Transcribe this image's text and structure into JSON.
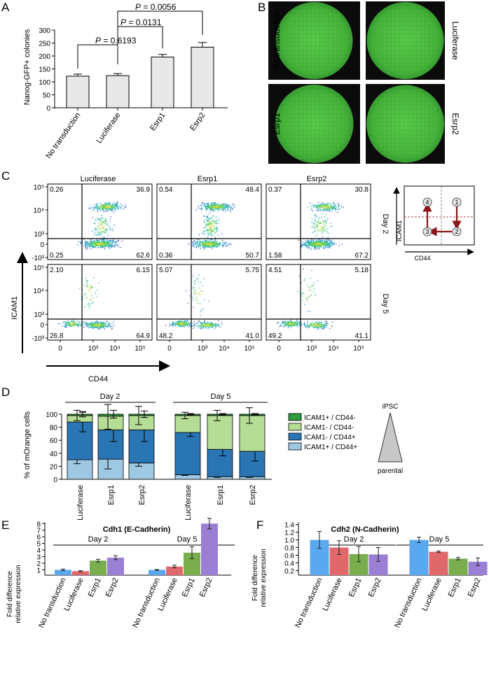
{
  "panel_letters": [
    "A",
    "B",
    "C",
    "D",
    "E",
    "F"
  ],
  "panelA": {
    "ylabel": "Nanog-GFP+ colonies",
    "ylim": [
      0,
      300
    ],
    "yticks": [
      "0",
      "50",
      "100",
      "150",
      "200",
      "250",
      "300"
    ],
    "p_labels": [
      {
        "italic": "P",
        "value": " = 0.6193"
      },
      {
        "italic": "P",
        "value": " = 0.0131"
      },
      {
        "italic": "P",
        "value": " = 0.0056"
      }
    ]
  },
  "panelB": {
    "wells": [
      {
        "label": "No transduction"
      },
      {
        "label": "Luciferase"
      },
      {
        "label": "Esrp1"
      },
      {
        "label": "Esrp2"
      }
    ]
  },
  "panelC": {
    "columns": [
      "Luciferase",
      "Esrp1",
      "Esrp2"
    ],
    "rows": [
      "Day 2",
      "Day 5"
    ],
    "yaxis_label": "ICAM1",
    "xaxis_label": "CD44",
    "yticks": [
      "10⁵",
      "10⁴",
      "10³",
      "0",
      "-10³"
    ],
    "xticks": [
      "0",
      "10³",
      "10⁴",
      "10⁵"
    ],
    "quadrants": [
      [
        [
          "0.26",
          "36.9",
          "0.25",
          "62.6"
        ],
        [
          "0.54",
          "48.4",
          "0.36",
          "50.7"
        ],
        [
          "0.37",
          "30.8",
          "1.58",
          "67.2"
        ]
      ],
      [
        [
          "2.10",
          "6.15",
          "26.8",
          "64.9"
        ],
        [
          "5.07",
          "5.75",
          "48.2",
          "41.0"
        ],
        [
          "4.51",
          "5.18",
          "49.2",
          "41.1"
        ]
      ]
    ],
    "schematic": {
      "ylabel": "ICAM1",
      "xlabel": "CD44",
      "nodes": [
        "4",
        "1",
        "3",
        "2"
      ]
    }
  },
  "panelD": {
    "ylabel": "% of mOrange cells",
    "yticks": [
      "0",
      "20",
      "40",
      "60",
      "80",
      "100"
    ],
    "day_labels": [
      "Day 2",
      "Day 5"
    ],
    "legend": [
      "ICAM1+ / CD44-",
      "ICAM1- / CD44-",
      "ICAM1- / CD44+",
      "ICAM1+ / CD44+"
    ],
    "triangle_top": "iPSC",
    "triangle_bottom": "parental",
    "colors": [
      "#9fc9e3",
      "#2a75b3",
      "#b6dd96",
      "#2f9a3e"
    ]
  },
  "panelE": {
    "title": "Cdh1 (E-Cadherin)",
    "ylabel": [
      "Fold difference",
      "relative expression"
    ],
    "yticks": [
      "1",
      "2",
      "3",
      "4",
      "5",
      "6",
      "7",
      "8"
    ],
    "day_labels": [
      "Day 2",
      "Day 5"
    ]
  },
  "panelF": {
    "title": "Cdh2 (N-Cadherin)",
    "ylabel": [
      "Fold difference",
      "relative expression"
    ],
    "yticks": [
      "0.2",
      "0.4",
      "0.6",
      "0.8",
      "1.0",
      "1.2",
      "1.4"
    ],
    "day_labels": [
      "Day 2",
      "Day 5"
    ]
  },
  "bar_colors": [
    "#5aa9f0",
    "#e0686a",
    "#79ad4e",
    "#9a7fd5"
  ],
  "chart_data": [
    {
      "type": "bar",
      "panel": "A",
      "categories": [
        "No transduction",
        "Luciferase",
        "Esrp1",
        "Esrp2"
      ],
      "values": [
        122,
        124,
        196,
        234
      ],
      "errors": [
        8,
        8,
        10,
        18
      ],
      "ylabel": "Nanog-GFP+ colonies",
      "ylim": [
        0,
        300
      ]
    },
    {
      "type": "bar",
      "panel": "D",
      "stacked": true,
      "groups": [
        "Day 2",
        "Day 5"
      ],
      "categories": [
        "Luciferase",
        "Esrp1",
        "Esrp2"
      ],
      "ylabel": "% of mOrange cells",
      "ylim": [
        0,
        100
      ],
      "series": [
        {
          "name": "ICAM1+ / CD44+",
          "day2": [
            30,
            31,
            25
          ],
          "day5": [
            7,
            4,
            4
          ],
          "err_day2": [
            6,
            15,
            5
          ],
          "err_day5": [
            1,
            1,
            1
          ]
        },
        {
          "name": "ICAM1- / CD44+",
          "day2": [
            58,
            45,
            51
          ],
          "day5": [
            65,
            42,
            39
          ],
          "err_day2": [
            15,
            18,
            18
          ],
          "err_day5": [
            6,
            10,
            15
          ]
        },
        {
          "name": "ICAM1- / CD44-",
          "day2": [
            10,
            21,
            22
          ],
          "day5": [
            26,
            52,
            55
          ],
          "err_day2": [
            8,
            20,
            14
          ],
          "err_day5": [
            5,
            8,
            12
          ]
        },
        {
          "name": "ICAM1+ / CD44-",
          "day2": [
            2,
            3,
            2
          ],
          "day5": [
            2,
            2,
            2
          ],
          "err_day2": [
            4,
            6,
            5
          ],
          "err_day5": [
            1,
            1,
            1
          ]
        }
      ]
    },
    {
      "type": "bar",
      "panel": "E",
      "title": "Cdh1 (E-Cadherin)",
      "groups": [
        "Day 2",
        "Day 5"
      ],
      "categories": [
        "No transduction",
        "Luciferase",
        "Esrp1",
        "Esrp2"
      ],
      "day2": [
        1.0,
        0.8,
        2.4,
        2.85
      ],
      "day5": [
        1.0,
        1.5,
        3.6,
        8.0
      ],
      "err_day2": [
        0.12,
        0.07,
        0.2,
        0.3
      ],
      "err_day5": [
        0.06,
        0.2,
        0.9,
        0.8
      ],
      "ylabel": "Fold difference relative expression",
      "ylim": [
        0,
        8.5
      ]
    },
    {
      "type": "bar",
      "panel": "F",
      "title": "Cdh2 (N-Cadherin)",
      "groups": [
        "Day 2",
        "Day 5"
      ],
      "categories": [
        "No transduction",
        "Luciferase",
        "Esrp1",
        "Esrp2"
      ],
      "day2": [
        1.0,
        0.8,
        0.63,
        0.62
      ],
      "day5": [
        1.0,
        0.69,
        0.51,
        0.43
      ],
      "err_day2": [
        0.22,
        0.18,
        0.2,
        0.18
      ],
      "err_day5": [
        0.07,
        0.02,
        0.03,
        0.1
      ],
      "ylabel": "Fold difference relative expression",
      "ylim": [
        0,
        1.45
      ]
    }
  ]
}
